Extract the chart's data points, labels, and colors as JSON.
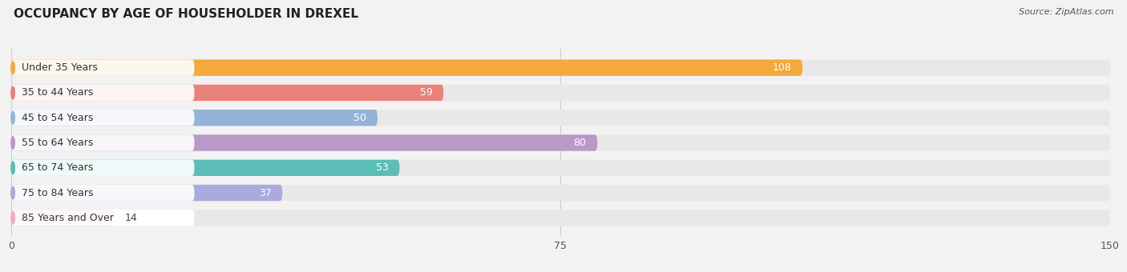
{
  "title": "OCCUPANCY BY AGE OF HOUSEHOLDER IN DREXEL",
  "source": "Source: ZipAtlas.com",
  "categories": [
    "Under 35 Years",
    "35 to 44 Years",
    "45 to 54 Years",
    "55 to 64 Years",
    "65 to 74 Years",
    "75 to 84 Years",
    "85 Years and Over"
  ],
  "values": [
    108,
    59,
    50,
    80,
    53,
    37,
    14
  ],
  "bar_colors": [
    "#F5A93B",
    "#E8837A",
    "#93B4D8",
    "#B899C8",
    "#5BBCB8",
    "#AAAADD",
    "#F4AABC"
  ],
  "xlim": [
    0,
    150
  ],
  "xticks": [
    0,
    75,
    150
  ],
  "bar_height": 0.65,
  "background_color": "#f2f2f2",
  "bar_bg_color": "#ffffff",
  "title_fontsize": 11,
  "label_fontsize": 9,
  "value_fontsize": 9,
  "source_fontsize": 8,
  "value_color_inside": "#ffffff",
  "value_color_outside": "#444444",
  "label_color": "#333333"
}
